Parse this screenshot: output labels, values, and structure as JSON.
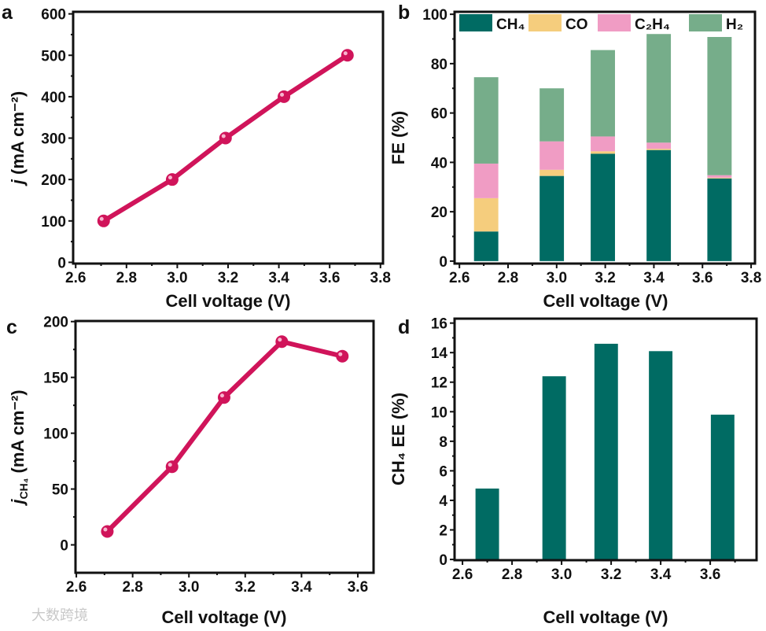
{
  "watermark": "大数跨境",
  "chart_data": [
    {
      "panel": "a",
      "type": "line",
      "xlabel": "Cell voltage (V)",
      "ylabel_italic": "j",
      "ylabel_rest": " (mA cm⁻²)",
      "xlim": [
        2.59,
        3.81
      ],
      "ylim": [
        -3,
        605
      ],
      "xticks": [
        2.6,
        2.8,
        3.0,
        3.2,
        3.4,
        3.6,
        3.8
      ],
      "xtick_labels": [
        "2.6",
        "2.8",
        "3.0",
        "3.2",
        "3.4",
        "3.6",
        "3.8"
      ],
      "yticks": [
        0,
        100,
        200,
        300,
        400,
        500,
        600
      ],
      "ytick_labels": [
        "0",
        "100",
        "200",
        "300",
        "400",
        "500",
        "600"
      ],
      "x": [
        2.71,
        2.98,
        3.19,
        3.42,
        3.67
      ],
      "y": [
        100,
        200,
        300,
        400,
        500
      ],
      "color": "#d0145a",
      "grid": false
    },
    {
      "panel": "b",
      "type": "bar",
      "stacked": true,
      "xlabel": "Cell voltage (V)",
      "ylabel": "FE (%)",
      "xlim": [
        2.58,
        3.816
      ],
      "ylim": [
        -1,
        101
      ],
      "xticks": [
        2.6,
        2.8,
        3.0,
        3.2,
        3.4,
        3.6,
        3.8
      ],
      "xtick_labels": [
        "2.6",
        "2.8",
        "3.0",
        "3.2",
        "3.4",
        "3.6",
        "3.8"
      ],
      "yticks": [
        0,
        20,
        40,
        60,
        80,
        100
      ],
      "ytick_labels": [
        "0",
        "20",
        "40",
        "60",
        "80",
        "100"
      ],
      "x": [
        2.71,
        2.98,
        3.19,
        3.42,
        3.67
      ],
      "bar_width": 0.1,
      "legend_position": "top",
      "series": [
        {
          "name": "CH₄",
          "color": "#006b63",
          "values": [
            12,
            34.5,
            43.5,
            45,
            33.5
          ]
        },
        {
          "name": "CO",
          "color": "#f5cd7d",
          "values": [
            13.5,
            2.5,
            1,
            0.5,
            0.3
          ]
        },
        {
          "name": "C₂H₄",
          "color": "#f09cc4",
          "values": [
            14,
            11.5,
            6,
            2.5,
            1
          ]
        },
        {
          "name": "H₂",
          "color": "#76ad8a",
          "values": [
            35,
            21.5,
            35,
            44,
            56
          ]
        }
      ],
      "grid": false
    },
    {
      "panel": "c",
      "type": "line",
      "xlabel": "Cell voltage (V)",
      "ylabel_italic": "j",
      "ylabel_sub": "CH₄",
      "ylabel_rest": " (mA cm⁻²)",
      "xlim": [
        2.597,
        3.656
      ],
      "ylim": [
        -25,
        200.5
      ],
      "xticks": [
        2.6,
        2.8,
        3.0,
        3.2,
        3.4,
        3.6
      ],
      "xtick_labels": [
        "2.6",
        "2.8",
        "3.0",
        "3.2",
        "3.4",
        "3.6"
      ],
      "yticks": [
        0,
        50,
        100,
        150,
        200
      ],
      "ytick_labels": [
        "0",
        "50",
        "100",
        "150",
        "200"
      ],
      "x": [
        2.71,
        2.94,
        3.125,
        3.33,
        3.545
      ],
      "y": [
        12,
        70,
        132,
        182,
        169
      ],
      "color": "#d0145a",
      "grid": false
    },
    {
      "panel": "d",
      "type": "bar",
      "xlabel": "Cell voltage (V)",
      "ylabel": "CH₄  EE (%)",
      "xlim": [
        2.568,
        3.787
      ],
      "ylim": [
        -0.05,
        16.3
      ],
      "xticks": [
        2.6,
        2.8,
        3.0,
        3.2,
        3.4,
        3.6
      ],
      "xtick_labels": [
        "2.6",
        "2.8",
        "3.0",
        "3.2",
        "3.4",
        "3.6"
      ],
      "yticks": [
        0,
        2,
        4,
        6,
        8,
        10,
        12,
        14,
        16
      ],
      "ytick_labels": [
        "0",
        "2",
        "4",
        "6",
        "8",
        "10",
        "12",
        "14",
        "16"
      ],
      "x": [
        2.7,
        2.97,
        3.18,
        3.4,
        3.65
      ],
      "values": [
        4.8,
        12.4,
        14.6,
        14.1,
        9.8
      ],
      "bar_width": 0.095,
      "color": "#006b63",
      "grid": false
    }
  ]
}
